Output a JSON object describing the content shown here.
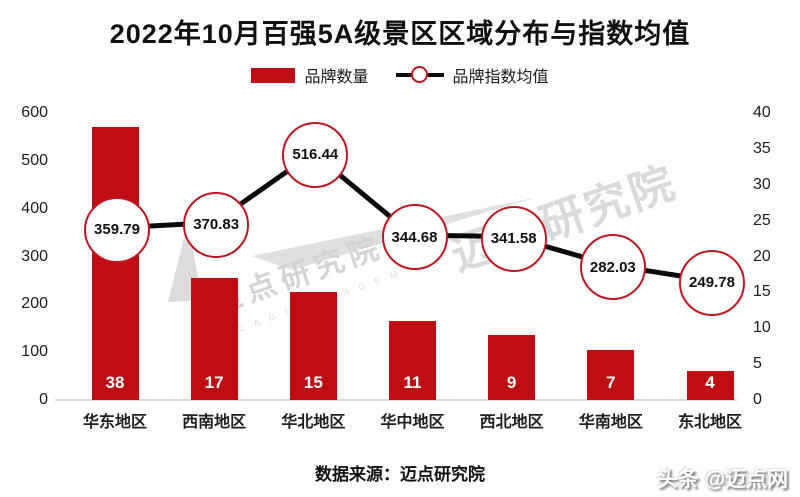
{
  "title": "2022年10月百强5A级景区区域分布与指数均值",
  "legend": {
    "bar_label": "品牌数量",
    "line_label": "品牌指数均值"
  },
  "footer": {
    "source_note": "数据来源：迈点研究院",
    "toutiao_mark": "头条 @迈点网"
  },
  "watermark": {
    "text_small": "迈点研究院",
    "subtext": "M E A D I N   A C A D E M Y",
    "text_large": "迈点研究院"
  },
  "colors": {
    "bar_red": "#be0e13",
    "marker_outline_red": "#bf1722",
    "line_black": "#0a0a0a",
    "axis_line_gray": "#d9d9d9",
    "watermark_gray": "#d6d6d6",
    "bar_label_white": "#ffffff",
    "title_color": "#101010"
  },
  "chart_data": {
    "type": "bar+line combo",
    "title": "2022年10月百强5A级景区区域分布与指数均值",
    "categories": [
      "华东地区",
      "西南地区",
      "华北地区",
      "华中地区",
      "西北地区",
      "华南地区",
      "东北地区"
    ],
    "series": [
      {
        "name": "品牌数量",
        "type": "bar",
        "axis": "left",
        "values": [
          38,
          17,
          15,
          11,
          9,
          7,
          4
        ],
        "bar_scale_factor_on_left_axis": 15,
        "color": "#be0e13",
        "data_label_position": "inside-bottom"
      },
      {
        "name": "品牌指数均值",
        "type": "line",
        "axis": "right",
        "values": [
          359.79,
          370.83,
          516.44,
          344.68,
          341.58,
          282.03,
          249.78
        ],
        "plot_divisor_on_right_axis": 15,
        "line_color": "#0a0a0a",
        "marker": "white circle with red outline, value labeled inside"
      }
    ],
    "left_axis": {
      "min": 0,
      "max": 600,
      "ticks": [
        600,
        500,
        400,
        300,
        200,
        100,
        0
      ]
    },
    "right_axis": {
      "min": 0,
      "max": 40,
      "ticks": [
        40,
        35,
        30,
        25,
        20,
        15,
        10,
        5,
        0
      ]
    },
    "grid": false,
    "legend_position": "top-center"
  }
}
